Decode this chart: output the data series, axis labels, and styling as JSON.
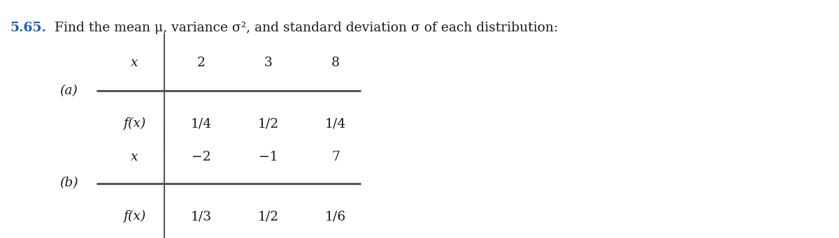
{
  "title_number": "5.65.",
  "title_text": "Find the mean μ, variance σ², and standard deviation σ of each distribution:",
  "title_color_number": "#1a5eb8",
  "title_color_text": "#1a1a1a",
  "table_a_label": "(a)",
  "table_b_label": "(b)",
  "table_a_x_header": "x",
  "table_a_fx_header": "f(x)",
  "table_a_x_vals": [
    "2",
    "3",
    "8"
  ],
  "table_a_fx_vals": [
    "1/4",
    "1/2",
    "1/4"
  ],
  "table_b_x_header": "x",
  "table_b_fx_header": "f(x)",
  "table_b_x_vals": [
    "−2",
    "−1",
    "7"
  ],
  "table_b_fx_vals": [
    "1/3",
    "1/2",
    "1/6"
  ],
  "bg_color": "#ffffff",
  "text_color": "#1a1a1a",
  "line_color": "#555555",
  "font_size_title": 13.5,
  "font_size_table": 13.5,
  "font_size_label": 13.5
}
